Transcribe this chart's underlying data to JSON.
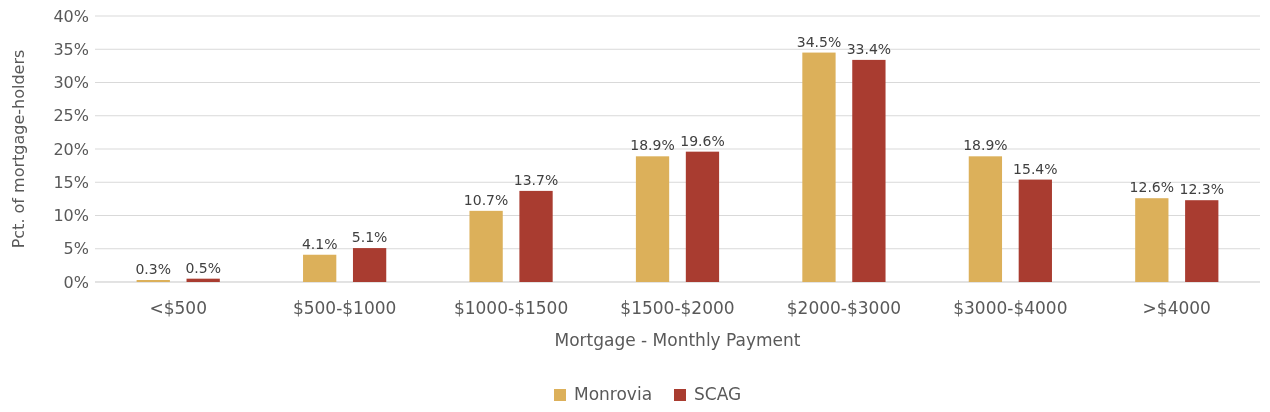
{
  "chart_data": {
    "type": "bar",
    "xlabel": "Mortgage - Monthly Payment",
    "ylabel": "Pct. of mortgage-holders",
    "categories": [
      "<$500",
      "$500-$1000",
      "$1000-$1500",
      "$1500-$2000",
      "$2000-$3000",
      "$3000-$4000",
      ">$4000"
    ],
    "series": [
      {
        "name": "Monrovia",
        "color": "#dcb05a",
        "values": [
          0.3,
          4.1,
          10.7,
          18.9,
          34.5,
          18.9,
          12.6
        ],
        "value_labels": [
          "0.3%",
          "4.1%",
          "10.7%",
          "18.9%",
          "34.5%",
          "18.9%",
          "12.6%"
        ]
      },
      {
        "name": "SCAG",
        "color": "#a93c30",
        "values": [
          0.5,
          5.1,
          13.7,
          19.6,
          33.4,
          15.4,
          12.3
        ],
        "value_labels": [
          "0.5%",
          "5.1%",
          "13.7%",
          "19.6%",
          "33.4%",
          "15.4%",
          "12.3%"
        ]
      }
    ],
    "ylim": [
      0,
      40
    ],
    "yticks": [
      {
        "value": 0,
        "label": "0%"
      },
      {
        "value": 5,
        "label": "5%"
      },
      {
        "value": 10,
        "label": "10%"
      },
      {
        "value": 15,
        "label": "15%"
      },
      {
        "value": 20,
        "label": "20%"
      },
      {
        "value": 25,
        "label": "25%"
      },
      {
        "value": 30,
        "label": "30%"
      },
      {
        "value": 35,
        "label": "35%"
      },
      {
        "value": 40,
        "label": "40%"
      }
    ],
    "grid": "y",
    "legend": "bottom"
  }
}
